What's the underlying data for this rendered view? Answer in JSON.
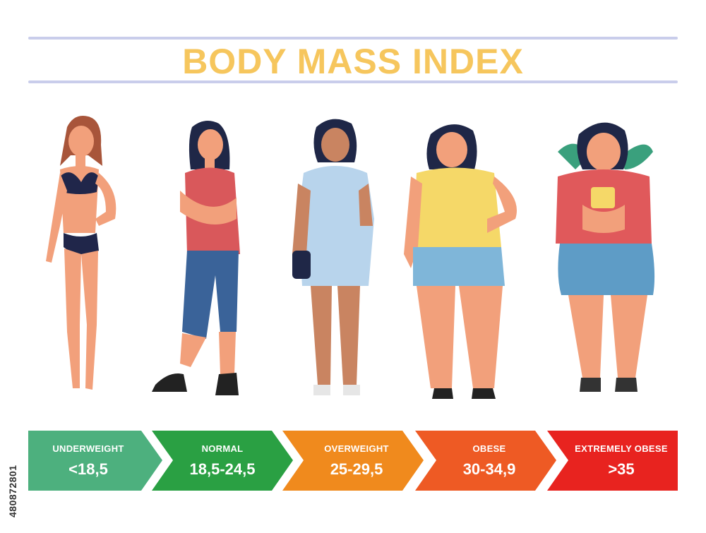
{
  "title": "BODY MASS INDEX",
  "categories": [
    {
      "label": "UNDERWEIGHT",
      "range": "<18,5",
      "color": "#4db07e"
    },
    {
      "label": "NORMAL",
      "range": "18,5-24,5",
      "color": "#2aa043"
    },
    {
      "label": "OVERWEIGHT",
      "range": "25-29,5",
      "color": "#f08a1d"
    },
    {
      "label": "OBESE",
      "range": "30-34,9",
      "color": "#ee5a24"
    },
    {
      "label": "EXTREMELY OBESE",
      "range": ">35",
      "color": "#e8231f"
    }
  ],
  "watermark_id": "480872801",
  "colors": {
    "title": "#f6c65d",
    "rule": "#c9cdeb",
    "skin": "#f2a07b",
    "hair_dark": "#1f2747",
    "hair_brown": "#a8553a"
  }
}
